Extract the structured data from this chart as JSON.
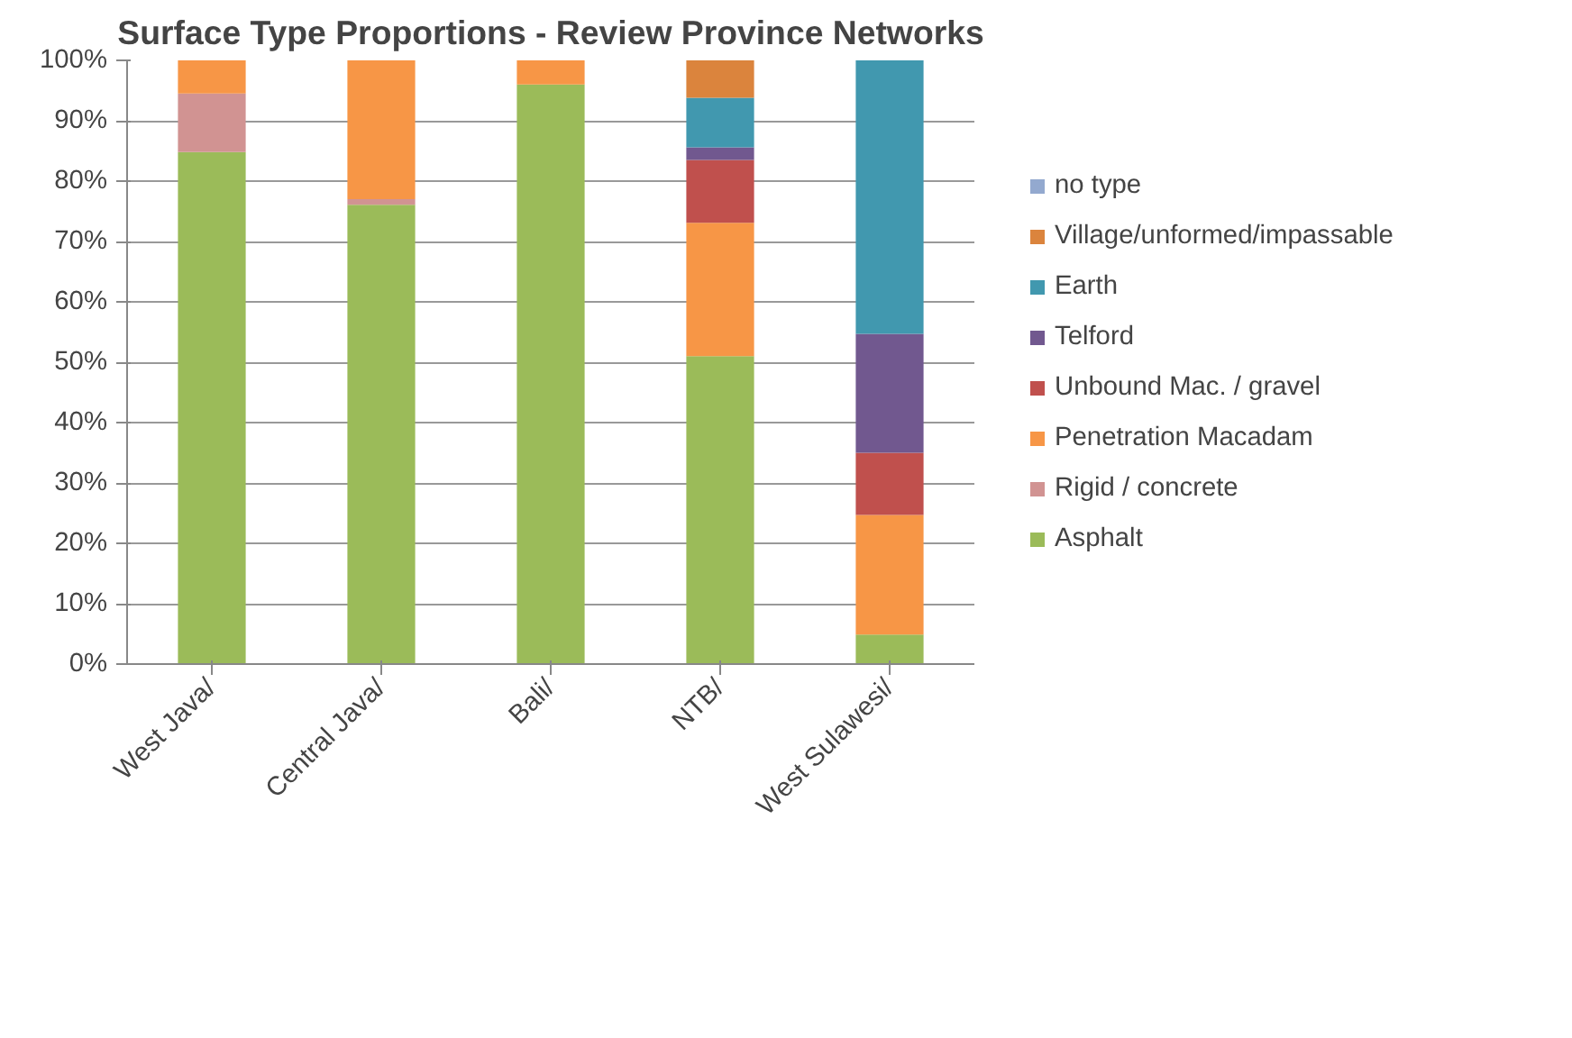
{
  "chart_data": {
    "type": "bar",
    "title": "Surface Type Proportions - Review Province Networks",
    "stacked": true,
    "categories": [
      "West Java/",
      "Central Java/",
      "Bali/",
      "NTB/",
      "West Sulawesi/"
    ],
    "series": [
      {
        "name": "Asphalt",
        "color": "#9bbb59",
        "values": [
          84.8,
          76.1,
          96,
          51,
          4.9
        ]
      },
      {
        "name": "Rigid / concrete",
        "color": "#d19392",
        "values": [
          9.7,
          0.9,
          0,
          0,
          0
        ]
      },
      {
        "name": "Penetration Macadam",
        "color": "#f79646",
        "values": [
          5.5,
          23,
          4,
          22.1,
          19.8
        ]
      },
      {
        "name": "Unbound Mac. / gravel",
        "color": "#c0504d",
        "values": [
          0,
          0,
          0,
          10.4,
          10.3
        ]
      },
      {
        "name": "Telford",
        "color": "#71588f",
        "values": [
          0,
          0,
          0,
          2.1,
          19.7
        ]
      },
      {
        "name": "Earth",
        "color": "#4198af",
        "values": [
          0,
          0,
          0,
          8.2,
          45.3
        ]
      },
      {
        "name": "Village/unformed/impassable",
        "color": "#db843d",
        "values": [
          0,
          0,
          0,
          6.2,
          0
        ]
      },
      {
        "name": "no type",
        "color": "#93a9cf",
        "values": [
          0,
          0,
          0,
          0,
          0
        ]
      }
    ],
    "ylim": [
      0,
      100
    ],
    "yticks": [
      {
        "value": 0,
        "label": "0%"
      },
      {
        "value": 10,
        "label": "10%"
      },
      {
        "value": 20,
        "label": "20%"
      },
      {
        "value": 30,
        "label": "30%"
      },
      {
        "value": 40,
        "label": "40%"
      },
      {
        "value": 50,
        "label": "50%"
      },
      {
        "value": 60,
        "label": "60%"
      },
      {
        "value": 70,
        "label": "70%"
      },
      {
        "value": 80,
        "label": "80%"
      },
      {
        "value": 90,
        "label": "90%"
      },
      {
        "value": 100,
        "label": "100%"
      }
    ],
    "grid": "y",
    "legend": "right"
  }
}
